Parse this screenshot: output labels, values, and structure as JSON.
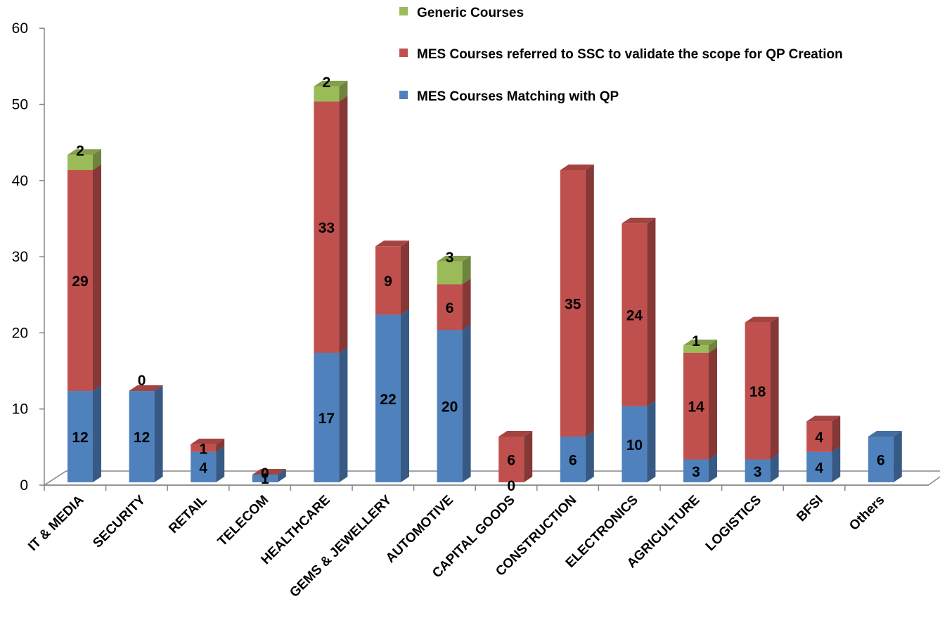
{
  "chart_data": {
    "type": "bar",
    "stacked": true,
    "three_d": true,
    "title": "",
    "xlabel": "",
    "ylabel": "",
    "ylim": [
      0,
      60
    ],
    "yticks": [
      "0",
      "10",
      "20",
      "30",
      "40",
      "50",
      "60"
    ],
    "categories": [
      "IT & MEDIA",
      "SECURITY",
      "RETAIL",
      "TELECOM",
      "HEALTHCARE",
      "GEMS & JEWELLERY",
      "AUTOMOTIVE",
      "CAPITAL GOODS",
      "CONSTRUCTION",
      "ELECTRONICS",
      "AGRICULTURE",
      "LOGISTICS",
      "BFSI",
      "Others"
    ],
    "legend_position": "top-right",
    "series": [
      {
        "name": "MES Courses Matching with QP",
        "color": "#4F81BD",
        "values": [
          12,
          12,
          4,
          1,
          17,
          22,
          20,
          0,
          6,
          10,
          3,
          3,
          4,
          6
        ],
        "labels": [
          "12",
          "12",
          "4",
          "1",
          "17",
          "22",
          "20",
          "0",
          "6",
          "10",
          "3",
          "3",
          "4",
          "6"
        ]
      },
      {
        "name": "MES Courses referred to SSC to validate the scope for QP Creation",
        "color": "#C0504D",
        "values": [
          29,
          0,
          1,
          0,
          33,
          9,
          6,
          6,
          35,
          24,
          14,
          18,
          4,
          0
        ],
        "labels": [
          "29",
          "0",
          "1",
          "0",
          "33",
          "9",
          "6",
          "6",
          "35",
          "24",
          "14",
          "18",
          "4",
          null
        ]
      },
      {
        "name": "Generic Courses",
        "color": "#9BBB59",
        "values": [
          2,
          0,
          0,
          0,
          2,
          0,
          3,
          0,
          0,
          0,
          1,
          0,
          0,
          0
        ],
        "labels": [
          "2",
          null,
          null,
          null,
          "2",
          null,
          "3",
          null,
          null,
          null,
          "1",
          null,
          null,
          null
        ]
      }
    ]
  }
}
